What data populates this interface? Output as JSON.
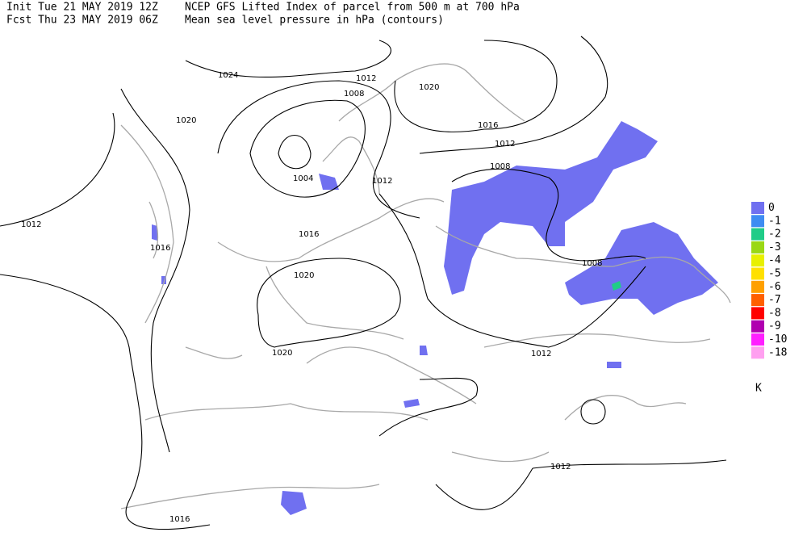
{
  "header": {
    "line1_left": "Init  Tue 21 MAY 2019 12Z",
    "line1_right": "NCEP GFS Lifted Index of parcel from 500 m at 700 hPa",
    "line2_left": "Fcst Thu 23 MAY 2019 06Z",
    "line2_right": "Mean sea level pressure in hPa (contours)"
  },
  "contour_labels": [
    1024,
    1012,
    1020,
    1008,
    1020,
    1016,
    1012,
    1008,
    1004,
    1012,
    1012,
    1016,
    1016,
    1008,
    1020,
    1020,
    1012,
    1012,
    1016
  ],
  "legend": {
    "items": [
      {
        "label": 0,
        "color": "#7070f0"
      },
      {
        "label": -1,
        "color": "#3e8cf2"
      },
      {
        "label": -2,
        "color": "#20cc88"
      },
      {
        "label": -3,
        "color": "#9ad814"
      },
      {
        "label": -4,
        "color": "#e8f000"
      },
      {
        "label": -5,
        "color": "#ffe000"
      },
      {
        "label": -6,
        "color": "#ffa000"
      },
      {
        "label": -7,
        "color": "#ff6000"
      },
      {
        "label": -8,
        "color": "#ff0000"
      },
      {
        "label": -9,
        "color": "#b000b0"
      },
      {
        "label": -10,
        "color": "#ff20ff"
      },
      {
        "label": -18,
        "color": "#ffa0f0"
      }
    ],
    "unit": "K"
  }
}
